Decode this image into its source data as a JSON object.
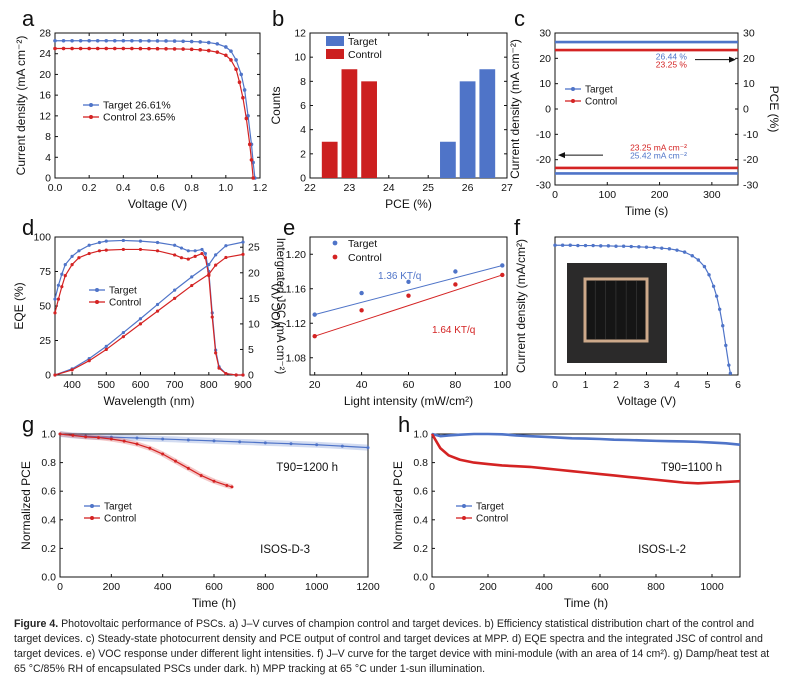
{
  "colors": {
    "target": "#4f74c8",
    "control": "#d42323",
    "axis": "#111111",
    "bar_target": "#4f74c8",
    "bar_control": "#cc1f1f"
  },
  "caption": {
    "label": "Figure 4.",
    "text": " Photovoltaic performance of PSCs. a) J–V curves of champion control and target devices. b) Efficiency statistical distribution chart of the control and target devices. c) Steady-state photocurrent density and PCE output of control and target devices at MPP. d) EQE spectra and the integrated JSC of control and target devices. e) VOC response under different light intensities. f) J–V curve for the target device with mini-module (with an area of 14 cm²). g) Damp/heat test at 65 °C/85% RH of encapsulated PSCs under dark. h) MPP tracking at 65 °C under 1-sun illumination."
  },
  "chart_data": [
    {
      "panel": "a",
      "type": "line",
      "xlabel": "Voltage (V)",
      "ylabel": "Current density (mA cm⁻²)",
      "xlim": [
        0,
        1.2
      ],
      "ylim": [
        0,
        28
      ],
      "xticks": [
        0.0,
        0.2,
        0.4,
        0.6,
        0.8,
        1.0,
        1.2
      ],
      "yticks": [
        0,
        4,
        8,
        12,
        16,
        20,
        24,
        28
      ],
      "legend": [
        "Target  26.61%",
        "Control  23.65%"
      ],
      "series": [
        {
          "name": "Target  26.61%",
          "color": "target",
          "x": [
            0,
            0.05,
            0.1,
            0.15,
            0.2,
            0.25,
            0.3,
            0.35,
            0.4,
            0.45,
            0.5,
            0.55,
            0.6,
            0.65,
            0.7,
            0.75,
            0.8,
            0.85,
            0.9,
            0.95,
            1.0,
            1.03,
            1.06,
            1.09,
            1.11,
            1.13,
            1.15,
            1.16,
            1.17
          ],
          "y": [
            26.5,
            26.5,
            26.5,
            26.5,
            26.5,
            26.5,
            26.5,
            26.5,
            26.5,
            26.5,
            26.49,
            26.48,
            26.47,
            26.46,
            26.44,
            26.4,
            26.35,
            26.28,
            26.15,
            25.9,
            25.3,
            24.5,
            22.8,
            20.0,
            17.0,
            12.0,
            6.5,
            3.0,
            0
          ]
        },
        {
          "name": "Control  23.65%",
          "color": "control",
          "x": [
            0,
            0.05,
            0.1,
            0.15,
            0.2,
            0.25,
            0.3,
            0.35,
            0.4,
            0.45,
            0.5,
            0.55,
            0.6,
            0.65,
            0.7,
            0.75,
            0.8,
            0.85,
            0.9,
            0.95,
            1.0,
            1.03,
            1.06,
            1.08,
            1.1,
            1.12,
            1.14,
            1.15,
            1.16
          ],
          "y": [
            25.0,
            25.0,
            25.0,
            25.0,
            25.0,
            25.0,
            25.0,
            25.0,
            25.0,
            25.0,
            24.99,
            24.98,
            24.97,
            24.95,
            24.93,
            24.9,
            24.85,
            24.75,
            24.6,
            24.3,
            23.7,
            22.8,
            21.0,
            18.5,
            15.5,
            11.5,
            6.5,
            3.5,
            0
          ]
        }
      ]
    },
    {
      "panel": "b",
      "type": "bar",
      "xlabel": "PCE (%)",
      "ylabel": "Counts",
      "xlim": [
        22,
        27
      ],
      "ylim": [
        0,
        12
      ],
      "xticks": [
        22,
        23,
        24,
        25,
        26,
        27
      ],
      "yticks": [
        0,
        2,
        4,
        6,
        8,
        10,
        12
      ],
      "legend": [
        "Target",
        "Control"
      ],
      "series": [
        {
          "name": "Target",
          "color": "bar_target",
          "x": [
            25.5,
            26.0,
            26.5
          ],
          "values": [
            3,
            8,
            9
          ]
        },
        {
          "name": "Control",
          "color": "bar_control",
          "x": [
            22.5,
            23.0,
            23.5
          ],
          "values": [
            3,
            9,
            8
          ]
        }
      ]
    },
    {
      "panel": "c",
      "type": "line",
      "xlabel": "Time (s)",
      "ylabel": "Current density (mA cm⁻²)",
      "y2label": "PCE (%)",
      "xlim": [
        0,
        350
      ],
      "ylim": [
        -30,
        30
      ],
      "xticks": [
        0,
        100,
        200,
        300
      ],
      "yticks": [
        -30,
        -20,
        -10,
        0,
        10,
        20,
        30
      ],
      "legend": [
        "Target",
        "Control"
      ],
      "annotations": [
        "26.44 %",
        "23.25 %",
        "23.25 mA cm⁻²",
        "25.42 mA cm⁻²"
      ],
      "series": [
        {
          "name": "Target PCE",
          "color": "target",
          "x": [
            0,
            350
          ],
          "y": [
            26.44,
            26.44
          ]
        },
        {
          "name": "Control PCE",
          "color": "control",
          "x": [
            0,
            350
          ],
          "y": [
            23.25,
            23.25
          ]
        },
        {
          "name": "Control J",
          "color": "control",
          "x": [
            0,
            350
          ],
          "y": [
            -23.25,
            -23.25
          ]
        },
        {
          "name": "Target J",
          "color": "target",
          "x": [
            0,
            350
          ],
          "y": [
            -25.42,
            -25.42
          ]
        }
      ]
    },
    {
      "panel": "d",
      "type": "line",
      "xlabel": "Wavelength (nm)",
      "ylabel": "EQE (%)",
      "y2label": "Intergrated JSC (mA cm⁻²)",
      "xlim": [
        350,
        900
      ],
      "ylim": [
        0,
        100
      ],
      "y2lim": [
        0,
        27
      ],
      "xticks": [
        400,
        500,
        600,
        700,
        800,
        900
      ],
      "yticks": [
        0,
        25,
        50,
        75,
        100
      ],
      "y2ticks": [
        0,
        5,
        10,
        15,
        20,
        25
      ],
      "legend": [
        "Target",
        "Control"
      ],
      "series": [
        {
          "name": "Target",
          "color": "target",
          "x": [
            350,
            360,
            370,
            380,
            400,
            420,
            450,
            480,
            500,
            550,
            600,
            650,
            700,
            720,
            740,
            760,
            780,
            790,
            800,
            810,
            820,
            830,
            850,
            880,
            900
          ],
          "y": [
            55,
            65,
            73,
            80,
            86,
            90,
            94,
            96,
            97,
            97.5,
            97,
            96,
            94,
            92,
            90,
            90,
            91,
            88,
            75,
            45,
            18,
            6,
            1,
            0,
            0
          ]
        },
        {
          "name": "Control",
          "color": "control",
          "x": [
            350,
            360,
            370,
            380,
            400,
            420,
            450,
            480,
            500,
            550,
            600,
            650,
            700,
            720,
            740,
            760,
            780,
            790,
            800,
            810,
            820,
            830,
            850,
            880,
            900
          ],
          "y": [
            45,
            55,
            64,
            72,
            80,
            85,
            88,
            90,
            90.5,
            91,
            91,
            90,
            87,
            85,
            84,
            86,
            88,
            85,
            72,
            42,
            16,
            5,
            1,
            0,
            0
          ]
        },
        {
          "name": "Target Jsc",
          "color": "target",
          "x": [
            350,
            400,
            450,
            500,
            550,
            600,
            650,
            700,
            750,
            800,
            820,
            850,
            900
          ],
          "y": [
            0,
            1.2,
            3.2,
            5.6,
            8.3,
            11.0,
            13.8,
            16.6,
            19.2,
            21.6,
            23.5,
            25.3,
            26.0
          ]
        },
        {
          "name": "Control Jsc",
          "color": "control",
          "x": [
            350,
            400,
            450,
            500,
            550,
            600,
            650,
            700,
            750,
            800,
            820,
            850,
            900
          ],
          "y": [
            0,
            1.0,
            2.8,
            5.0,
            7.5,
            10.0,
            12.5,
            15.0,
            17.5,
            19.7,
            21.5,
            23.0,
            23.6
          ]
        }
      ]
    },
    {
      "panel": "e",
      "type": "scatter",
      "xlabel": "Light intensity (mW/cm²)",
      "ylabel": "VOC (V)",
      "xlim": [
        18,
        102
      ],
      "ylim": [
        1.06,
        1.22
      ],
      "xticks": [
        20,
        40,
        60,
        80,
        100
      ],
      "yticks": [
        1.08,
        1.12,
        1.16,
        1.2
      ],
      "legend": [
        "Target",
        "Control"
      ],
      "annotations": [
        "1.36 KT/q",
        "1.64 KT/q"
      ],
      "series": [
        {
          "name": "Target",
          "color": "target",
          "x": [
            20,
            40,
            60,
            80,
            100
          ],
          "y": [
            1.13,
            1.155,
            1.168,
            1.18,
            1.187
          ]
        },
        {
          "name": "Control",
          "color": "control",
          "x": [
            20,
            40,
            60,
            80,
            100
          ],
          "y": [
            1.105,
            1.135,
            1.152,
            1.165,
            1.176
          ]
        }
      ]
    },
    {
      "panel": "f",
      "type": "line",
      "xlabel": "Voltage (V)",
      "ylabel": "Current density (mA/cm²)",
      "xlim": [
        0,
        6
      ],
      "ylim": [
        0,
        4.2
      ],
      "xticks": [
        0,
        1,
        2,
        3,
        4,
        5,
        6
      ],
      "yticks": [],
      "series": [
        {
          "name": "Target module",
          "color": "target",
          "x": [
            0,
            0.25,
            0.5,
            0.75,
            1.0,
            1.25,
            1.5,
            1.75,
            2.0,
            2.25,
            2.5,
            2.75,
            3.0,
            3.25,
            3.5,
            3.75,
            4.0,
            4.25,
            4.5,
            4.7,
            4.9,
            5.05,
            5.2,
            5.3,
            5.4,
            5.5,
            5.6,
            5.7,
            5.75
          ],
          "y": [
            3.95,
            3.95,
            3.95,
            3.94,
            3.94,
            3.94,
            3.93,
            3.93,
            3.92,
            3.92,
            3.91,
            3.9,
            3.89,
            3.88,
            3.86,
            3.84,
            3.8,
            3.74,
            3.63,
            3.5,
            3.3,
            3.05,
            2.7,
            2.4,
            2.0,
            1.5,
            0.9,
            0.3,
            0.05
          ]
        }
      ]
    },
    {
      "panel": "g",
      "type": "line",
      "xlabel": "Time (h)",
      "ylabel": "Normalized PCE",
      "xlim": [
        0,
        1200
      ],
      "ylim": [
        0,
        1.0
      ],
      "xticks": [
        0,
        200,
        400,
        600,
        800,
        1000,
        1200
      ],
      "yticks": [
        0.0,
        0.2,
        0.4,
        0.6,
        0.8,
        1.0
      ],
      "legend": [
        "Target",
        "Control"
      ],
      "annotations": [
        "T90=1200 h",
        "ISOS-D-3"
      ],
      "series": [
        {
          "name": "Target",
          "color": "target",
          "x": [
            0,
            50,
            100,
            150,
            200,
            250,
            300,
            350,
            400,
            450,
            500,
            550,
            600,
            650,
            700,
            750,
            800,
            850,
            900,
            950,
            1000,
            1050,
            1100,
            1150,
            1200
          ],
          "y": [
            1.0,
            0.99,
            0.985,
            0.98,
            0.978,
            0.975,
            0.972,
            0.968,
            0.965,
            0.962,
            0.958,
            0.955,
            0.952,
            0.948,
            0.945,
            0.942,
            0.938,
            0.935,
            0.932,
            0.928,
            0.925,
            0.92,
            0.915,
            0.91,
            0.905
          ]
        },
        {
          "name": "Control",
          "color": "control",
          "x": [
            0,
            50,
            100,
            150,
            200,
            250,
            300,
            350,
            400,
            450,
            500,
            550,
            600,
            650,
            670
          ],
          "y": [
            1.0,
            0.99,
            0.98,
            0.975,
            0.965,
            0.95,
            0.93,
            0.9,
            0.86,
            0.81,
            0.76,
            0.71,
            0.67,
            0.64,
            0.63
          ]
        }
      ]
    },
    {
      "panel": "h",
      "type": "line",
      "xlabel": "Time (h)",
      "ylabel": "Normalized PCE",
      "xlim": [
        0,
        1100
      ],
      "ylim": [
        0,
        1.0
      ],
      "xticks": [
        0,
        200,
        400,
        600,
        800,
        1000
      ],
      "yticks": [
        0.0,
        0.2,
        0.4,
        0.6,
        0.8,
        1.0
      ],
      "legend": [
        "Target",
        "Control"
      ],
      "annotations": [
        "T90=1100 h",
        "ISOS-L-2"
      ],
      "series": [
        {
          "name": "Target",
          "color": "target",
          "x": [
            0,
            30,
            60,
            100,
            150,
            200,
            250,
            300,
            350,
            400,
            450,
            500,
            550,
            600,
            650,
            700,
            750,
            800,
            850,
            900,
            950,
            1000,
            1050,
            1100
          ],
          "y": [
            1.0,
            0.985,
            0.99,
            0.995,
            1.0,
            1.0,
            0.998,
            0.99,
            0.985,
            0.98,
            0.975,
            0.97,
            0.968,
            0.965,
            0.96,
            0.958,
            0.955,
            0.952,
            0.95,
            0.948,
            0.945,
            0.94,
            0.935,
            0.925
          ]
        },
        {
          "name": "Control",
          "color": "control",
          "x": [
            0,
            30,
            60,
            100,
            150,
            200,
            250,
            300,
            350,
            400,
            450,
            500,
            550,
            600,
            650,
            700,
            750,
            800,
            850,
            900,
            950,
            1000,
            1050,
            1100
          ],
          "y": [
            1.0,
            0.9,
            0.85,
            0.82,
            0.8,
            0.79,
            0.78,
            0.775,
            0.77,
            0.76,
            0.75,
            0.74,
            0.73,
            0.72,
            0.71,
            0.7,
            0.69,
            0.68,
            0.67,
            0.66,
            0.655,
            0.66,
            0.665,
            0.67
          ]
        }
      ]
    }
  ]
}
